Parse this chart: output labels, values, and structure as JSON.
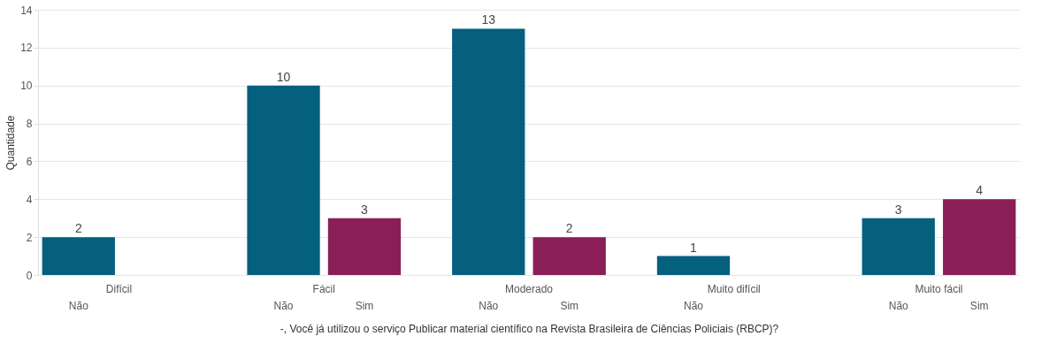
{
  "chart_data": {
    "type": "bar",
    "xlabel": "-, Você já utilizou o serviço Publicar material científico na Revista Brasileira de Ciências Policiais (RBCP)?",
    "ylabel": "Quantidade",
    "categories": [
      "Difícil",
      "Fácil",
      "Moderado",
      "Muito difícil",
      "Muito fácil"
    ],
    "series": [
      {
        "name": "Não",
        "color": "#05607e",
        "values": [
          2,
          10,
          13,
          1,
          3
        ]
      },
      {
        "name": "Sim",
        "color": "#8a1f57",
        "values": [
          null,
          3,
          2,
          null,
          4
        ]
      }
    ],
    "ylim": [
      0,
      14
    ],
    "yticks": [
      0,
      2,
      4,
      6,
      8,
      10,
      12,
      14
    ],
    "grid": "y",
    "data_labels": true,
    "legend": false
  }
}
